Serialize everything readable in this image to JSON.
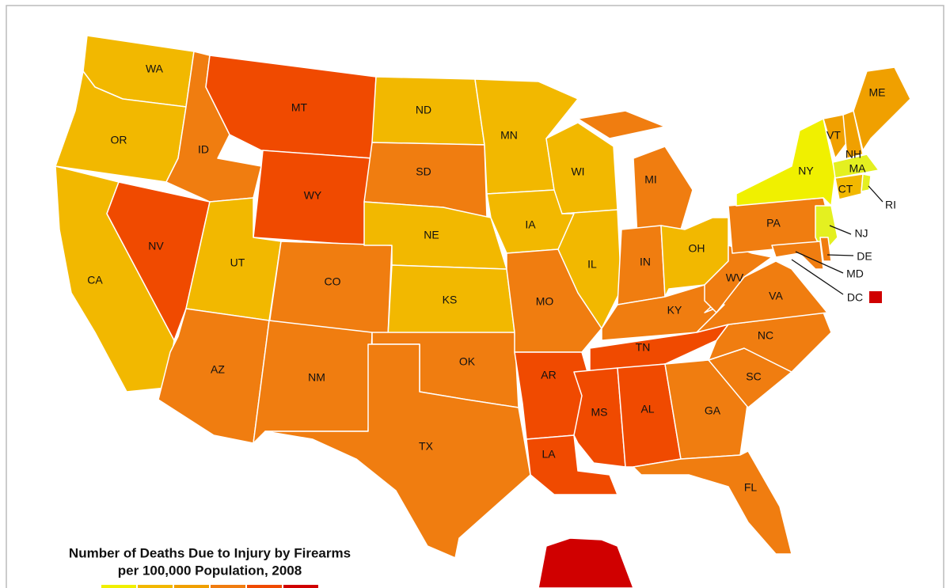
{
  "title_lines": [
    "Number of Deaths Due to Injury by Firearms",
    "per 100,000 Population, 2008"
  ],
  "legend_colors": [
    "#f0f000",
    "#f2b800",
    "#f0a000",
    "#f07d10",
    "#f04a00",
    "#d00000"
  ],
  "states": [
    {
      "label": "WA",
      "color": "#f2b800"
    },
    {
      "label": "OR",
      "color": "#f2b800"
    },
    {
      "label": "CA",
      "color": "#f2b800"
    },
    {
      "label": "NV",
      "color": "#f04a00"
    },
    {
      "label": "ID",
      "color": "#f07d10"
    },
    {
      "label": "MT",
      "color": "#f04a00"
    },
    {
      "label": "WY",
      "color": "#f04a00"
    },
    {
      "label": "UT",
      "color": "#f2b800"
    },
    {
      "label": "CO",
      "color": "#f07d10"
    },
    {
      "label": "AZ",
      "color": "#f07d10"
    },
    {
      "label": "NM",
      "color": "#f07d10"
    },
    {
      "label": "ND",
      "color": "#f2b800"
    },
    {
      "label": "SD",
      "color": "#f07d10"
    },
    {
      "label": "NE",
      "color": "#f2b800"
    },
    {
      "label": "KS",
      "color": "#f2b800"
    },
    {
      "label": "OK",
      "color": "#f07d10"
    },
    {
      "label": "TX",
      "color": "#f07d10"
    },
    {
      "label": "MN",
      "color": "#f2b800"
    },
    {
      "label": "IA",
      "color": "#f2b800"
    },
    {
      "label": "MO",
      "color": "#f07d10"
    },
    {
      "label": "AR",
      "color": "#f04a00"
    },
    {
      "label": "LA",
      "color": "#f04a00"
    },
    {
      "label": "WI",
      "color": "#f2b800"
    },
    {
      "label": "IL",
      "color": "#f2b800"
    },
    {
      "label": "MI",
      "color": "#f07d10"
    },
    {
      "label": "IN",
      "color": "#f07d10"
    },
    {
      "label": "OH",
      "color": "#f2b800"
    },
    {
      "label": "KY",
      "color": "#f07d10"
    },
    {
      "label": "TN",
      "color": "#f04a00"
    },
    {
      "label": "MS",
      "color": "#f04a00"
    },
    {
      "label": "AL",
      "color": "#f04a00"
    },
    {
      "label": "GA",
      "color": "#f07d10"
    },
    {
      "label": "FL",
      "color": "#f07d10"
    },
    {
      "label": "SC",
      "color": "#f07d10"
    },
    {
      "label": "NC",
      "color": "#f07d10"
    },
    {
      "label": "VA",
      "color": "#f07d10"
    },
    {
      "label": "WV",
      "color": "#f07d10"
    },
    {
      "label": "PA",
      "color": "#f07d10"
    },
    {
      "label": "NY",
      "color": "#f0f000"
    },
    {
      "label": "VT",
      "color": "#f0a000"
    },
    {
      "label": "NH",
      "color": "#f0a000"
    },
    {
      "label": "ME",
      "color": "#f0a000"
    },
    {
      "label": "MA",
      "color": "#e4f020"
    },
    {
      "label": "CT",
      "color": "#f2b800"
    },
    {
      "label": "RI",
      "color": "#e4f020"
    },
    {
      "label": "NJ",
      "color": "#e4f020"
    },
    {
      "label": "DE",
      "color": "#f07d10"
    },
    {
      "label": "MD",
      "color": "#f07d10"
    },
    {
      "label": "DC",
      "color": "#d00000"
    },
    {
      "color": "#d00000"
    }
  ]
}
